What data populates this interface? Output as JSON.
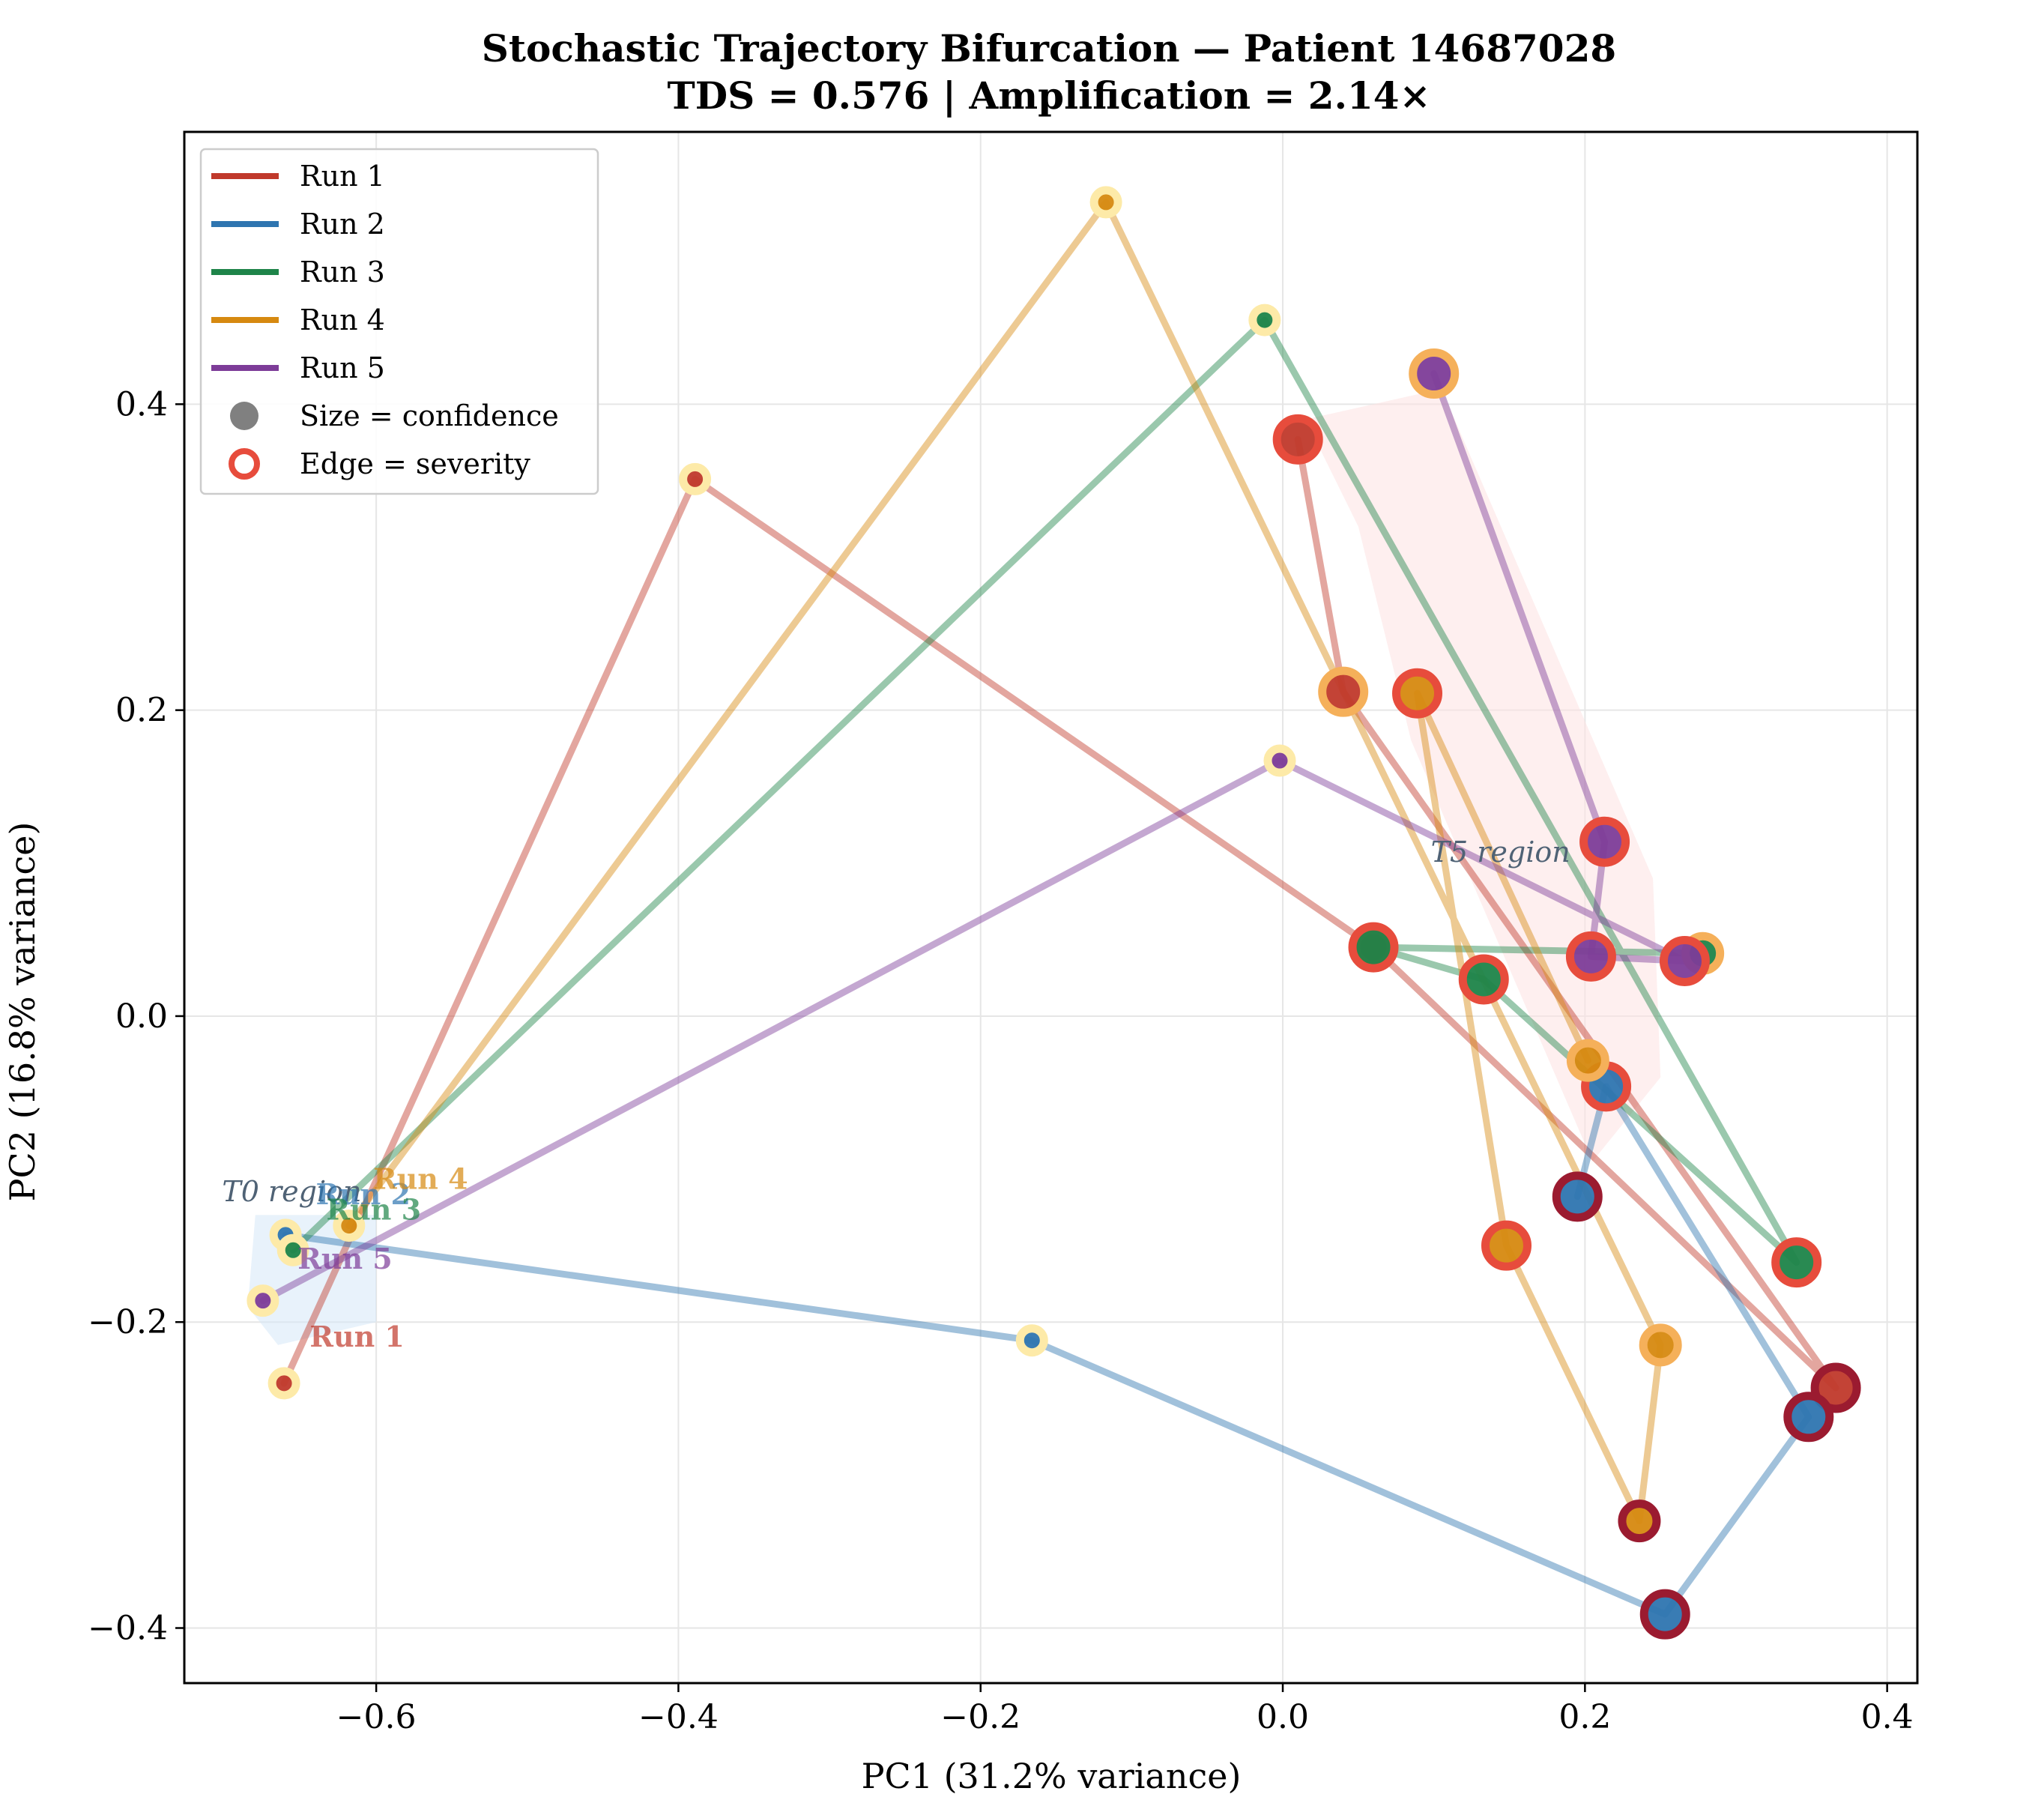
{
  "chart_data": {
    "type": "scatter",
    "title": "Stochastic Trajectory Bifurcation — Patient 14687028",
    "subtitle": "TDS = 0.576  |  Amplification = 2.14×",
    "xlabel": "PC1 (31.2% variance)",
    "ylabel": "PC2 (16.8% variance)",
    "xlim": [
      -0.727,
      0.42
    ],
    "ylim": [
      -0.436,
      0.578
    ],
    "x_ticks": [
      -0.6,
      -0.4,
      -0.2,
      0.0,
      0.2,
      0.4
    ],
    "x_tick_labels": [
      "−0.6",
      "−0.4",
      "−0.2",
      "0.0",
      "0.2",
      "0.4"
    ],
    "y_ticks": [
      -0.4,
      -0.2,
      0.0,
      0.2,
      0.4
    ],
    "y_tick_labels": [
      "−0.4",
      "−0.2",
      "0.0",
      "0.2",
      "0.4"
    ],
    "grid": true,
    "legend_position": "top-left",
    "legend": [
      {
        "label": "Run 1",
        "kind": "line",
        "color": "#c0392b"
      },
      {
        "label": "Run 2",
        "kind": "line",
        "color": "#2e75b0"
      },
      {
        "label": "Run 3",
        "kind": "line",
        "color": "#1e8449"
      },
      {
        "label": "Run 4",
        "kind": "line",
        "color": "#d68910"
      },
      {
        "label": "Run 5",
        "kind": "line",
        "color": "#7d3c98"
      },
      {
        "label": "Size = confidence",
        "kind": "dot",
        "color": "#808080"
      },
      {
        "label": "Edge = severity",
        "kind": "ring",
        "color": "#e74c3c"
      }
    ],
    "severity_edge_colors": [
      "#fdeaa8",
      "#f5b05a",
      "#e74c3c",
      "#9b1b30"
    ],
    "series": [
      {
        "name": "Run 1",
        "color": "#c0392b",
        "start_label": "Run 1",
        "points": [
          {
            "x": -0.661,
            "y": -0.24,
            "size": 0,
            "severity": 0
          },
          {
            "x": -0.389,
            "y": 0.351,
            "size": 0,
            "severity": 0
          },
          {
            "x": 0.06,
            "y": 0.045,
            "size": 1,
            "severity": 2
          },
          {
            "x": 0.366,
            "y": -0.243,
            "size": 2,
            "severity": 3
          },
          {
            "x": 0.04,
            "y": 0.212,
            "size": 2,
            "severity": 1
          },
          {
            "x": 0.01,
            "y": 0.377,
            "size": 2,
            "severity": 2
          }
        ]
      },
      {
        "name": "Run 2",
        "color": "#2e75b0",
        "start_label": "Run 2",
        "points": [
          {
            "x": -0.66,
            "y": -0.143,
            "size": 0,
            "severity": 0
          },
          {
            "x": -0.166,
            "y": -0.212,
            "size": 0,
            "severity": 0
          },
          {
            "x": 0.253,
            "y": -0.391,
            "size": 2,
            "severity": 3
          },
          {
            "x": 0.348,
            "y": -0.262,
            "size": 2,
            "severity": 3
          },
          {
            "x": 0.214,
            "y": -0.046,
            "size": 2,
            "severity": 2
          },
          {
            "x": 0.195,
            "y": -0.118,
            "size": 2,
            "severity": 3
          }
        ]
      },
      {
        "name": "Run 3",
        "color": "#1e8449",
        "start_label": "Run 3",
        "points": [
          {
            "x": -0.655,
            "y": -0.153,
            "size": 0,
            "severity": 0
          },
          {
            "x": -0.012,
            "y": 0.455,
            "size": 0,
            "severity": 0
          },
          {
            "x": 0.34,
            "y": -0.161,
            "size": 2,
            "severity": 2
          },
          {
            "x": 0.133,
            "y": 0.024,
            "size": 2,
            "severity": 2
          },
          {
            "x": 0.06,
            "y": 0.045,
            "size": 2,
            "severity": 2
          },
          {
            "x": 0.278,
            "y": 0.041,
            "size": 1,
            "severity": 1
          }
        ]
      },
      {
        "name": "Run 4",
        "color": "#d68910",
        "start_label": "Run 4",
        "points": [
          {
            "x": -0.618,
            "y": -0.137,
            "size": 0,
            "severity": 0
          },
          {
            "x": -0.117,
            "y": 0.532,
            "size": 0,
            "severity": 0
          },
          {
            "x": 0.25,
            "y": -0.215,
            "size": 1,
            "severity": 1
          },
          {
            "x": 0.236,
            "y": -0.33,
            "size": 1,
            "severity": 3
          },
          {
            "x": 0.148,
            "y": -0.15,
            "size": 2,
            "severity": 2
          },
          {
            "x": 0.089,
            "y": 0.211,
            "size": 2,
            "severity": 2
          },
          {
            "x": 0.202,
            "y": -0.029,
            "size": 1,
            "severity": 1
          }
        ]
      },
      {
        "name": "Run 5",
        "color": "#7d3c98",
        "start_label": "Run 5",
        "points": [
          {
            "x": -0.675,
            "y": -0.186,
            "size": 0,
            "severity": 0
          },
          {
            "x": -0.002,
            "y": 0.167,
            "size": 0,
            "severity": 0
          },
          {
            "x": 0.266,
            "y": 0.036,
            "size": 2,
            "severity": 2
          },
          {
            "x": 0.204,
            "y": 0.039,
            "size": 2,
            "severity": 2
          },
          {
            "x": 0.213,
            "y": 0.114,
            "size": 2,
            "severity": 2
          },
          {
            "x": 0.1,
            "y": 0.42,
            "size": 2,
            "severity": 1
          }
        ]
      }
    ],
    "regions": [
      {
        "label": "T0 region",
        "x": -0.702,
        "y": -0.121,
        "fill": "#d6e8f7",
        "polygon": [
          [
            -0.68,
            -0.13
          ],
          [
            -0.6,
            -0.13
          ],
          [
            -0.6,
            -0.2
          ],
          [
            -0.665,
            -0.215
          ],
          [
            -0.685,
            -0.19
          ]
        ]
      },
      {
        "label": "T5 region",
        "x": 0.098,
        "y": 0.101,
        "fill": "#fde2e2",
        "polygon": [
          [
            0.015,
            0.39
          ],
          [
            0.105,
            0.41
          ],
          [
            0.245,
            0.09
          ],
          [
            0.25,
            -0.04
          ],
          [
            0.205,
            -0.095
          ],
          [
            0.085,
            0.18
          ],
          [
            0.05,
            0.32
          ]
        ]
      }
    ]
  }
}
